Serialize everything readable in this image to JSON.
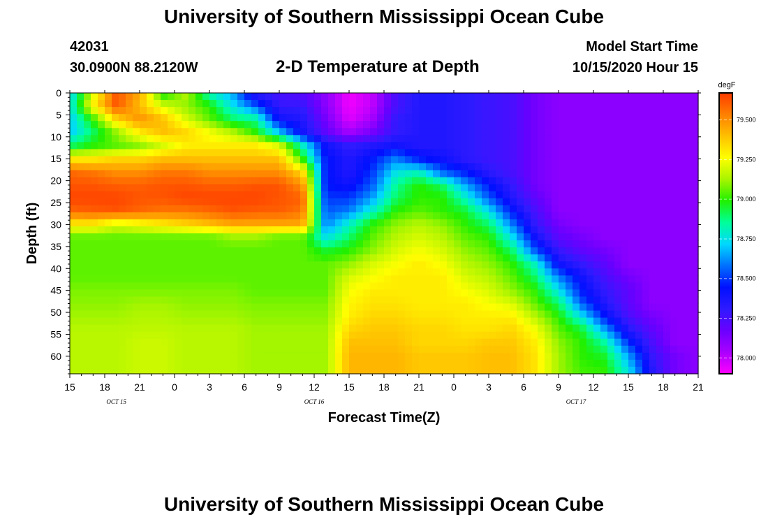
{
  "header": {
    "title": "University of Southern Mississippi Ocean Cube",
    "station_id": "42031",
    "station_coords": "30.0900N 88.2120W",
    "chart_title": "2-D Temperature at Depth",
    "model_start_label": "Model Start Time",
    "model_start_value": "10/15/2020 Hour 15"
  },
  "footer": {
    "title": "University of Southern Mississippi Ocean Cube"
  },
  "chart_data": {
    "type": "heatmap",
    "title": "2-D Temperature at Depth",
    "xlabel": "Forecast Time(Z)",
    "ylabel": "Depth (ft)",
    "x_hours": [
      0,
      3,
      6,
      9,
      12,
      15,
      18,
      21,
      24,
      27,
      30,
      33,
      36,
      39,
      42,
      45,
      48,
      51,
      54
    ],
    "x_tick_labels": [
      "15",
      "18",
      "21",
      "0",
      "3",
      "6",
      "9",
      "12",
      "15",
      "18",
      "21",
      "0",
      "3",
      "6",
      "9",
      "12",
      "15",
      "18",
      "21"
    ],
    "date_labels": [
      {
        "hour": 4,
        "label": "OCT 15"
      },
      {
        "hour": 21,
        "label": "OCT 16"
      },
      {
        "hour": 43.5,
        "label": "OCT 17"
      }
    ],
    "depth_ticks": [
      0,
      5,
      10,
      15,
      20,
      25,
      30,
      35,
      40,
      45,
      50,
      55,
      60
    ],
    "xlim": [
      0,
      54
    ],
    "ylim": [
      0,
      64
    ],
    "colorbar": {
      "unit": "degF",
      "min": 77.9,
      "max": 79.67,
      "ticks": [
        "78.000",
        "78.250",
        "78.500",
        "78.750",
        "79.000",
        "79.250",
        "79.500"
      ],
      "colors": [
        "#ff00ff",
        "#aa00ff",
        "#6a00ff",
        "#2f1aff",
        "#0010ff",
        "#0070ff",
        "#00d8ff",
        "#00ff9a",
        "#20f000",
        "#a8f500",
        "#ffff00",
        "#ffc000",
        "#ff8000",
        "#ff3a00"
      ]
    },
    "x_hours_sampled": [
      0,
      2,
      4,
      6,
      8,
      10,
      12,
      14,
      16,
      18,
      20,
      22,
      24,
      26,
      28,
      30,
      32,
      34,
      36,
      38,
      40,
      42,
      44,
      46,
      48,
      50,
      52,
      54
    ],
    "depths_sampled": [
      0,
      3,
      6,
      9,
      12,
      15,
      18,
      21,
      24,
      27,
      30,
      33,
      36,
      39,
      42,
      45,
      48,
      51,
      54,
      57,
      60,
      63
    ],
    "values": [
      [
        78.7,
        79.2,
        79.62,
        79.45,
        78.95,
        79.15,
        78.8,
        78.65,
        78.3,
        78.25,
        78.2,
        78.1,
        77.92,
        78.0,
        78.25,
        78.35,
        78.35,
        78.32,
        78.28,
        78.25,
        78.15,
        78.1,
        78.1,
        78.1,
        78.1,
        78.1,
        78.1,
        78.1
      ],
      [
        78.75,
        79.3,
        79.62,
        79.4,
        79.2,
        79.1,
        79.0,
        78.75,
        78.55,
        78.3,
        78.3,
        78.1,
        77.92,
        78.0,
        78.25,
        78.35,
        78.35,
        78.32,
        78.28,
        78.25,
        78.15,
        78.1,
        78.1,
        78.1,
        78.1,
        78.1,
        78.1,
        78.1
      ],
      [
        78.7,
        79.0,
        79.35,
        79.5,
        79.4,
        79.2,
        79.05,
        78.9,
        78.85,
        78.4,
        78.35,
        78.15,
        77.95,
        78.05,
        78.3,
        78.35,
        78.35,
        78.32,
        78.28,
        78.25,
        78.15,
        78.1,
        78.1,
        78.1,
        78.1,
        78.1,
        78.1,
        78.1
      ],
      [
        78.7,
        78.9,
        79.1,
        79.3,
        79.4,
        79.35,
        79.25,
        79.15,
        79.0,
        78.7,
        78.4,
        78.2,
        78.05,
        78.15,
        78.3,
        78.35,
        78.35,
        78.32,
        78.28,
        78.25,
        78.15,
        78.1,
        78.1,
        78.1,
        78.1,
        78.1,
        78.1,
        78.1
      ],
      [
        78.9,
        79.0,
        79.05,
        79.1,
        79.2,
        79.3,
        79.3,
        79.3,
        79.3,
        79.2,
        78.8,
        78.4,
        78.3,
        78.35,
        78.4,
        78.35,
        78.35,
        78.32,
        78.28,
        78.25,
        78.15,
        78.1,
        78.1,
        78.1,
        78.1,
        78.1,
        78.1,
        78.1
      ],
      [
        79.3,
        79.3,
        79.35,
        79.35,
        79.4,
        79.4,
        79.4,
        79.4,
        79.4,
        79.4,
        79.0,
        78.45,
        78.35,
        78.45,
        78.6,
        78.45,
        78.4,
        78.32,
        78.28,
        78.25,
        78.15,
        78.1,
        78.1,
        78.1,
        78.1,
        78.1,
        78.1,
        78.1
      ],
      [
        79.58,
        79.55,
        79.5,
        79.5,
        79.55,
        79.55,
        79.5,
        79.5,
        79.5,
        79.5,
        79.35,
        78.45,
        78.35,
        78.5,
        78.75,
        78.8,
        78.55,
        78.45,
        78.32,
        78.25,
        78.15,
        78.1,
        78.1,
        78.1,
        78.1,
        78.1,
        78.1,
        78.1
      ],
      [
        79.62,
        79.62,
        79.6,
        79.6,
        79.62,
        79.62,
        79.6,
        79.6,
        79.62,
        79.62,
        79.5,
        78.45,
        78.4,
        78.55,
        78.85,
        79.0,
        78.9,
        78.65,
        78.45,
        78.3,
        78.15,
        78.1,
        78.1,
        78.1,
        78.1,
        78.1,
        78.1,
        78.1
      ],
      [
        79.65,
        79.65,
        79.65,
        79.62,
        79.62,
        79.65,
        79.65,
        79.65,
        79.65,
        79.62,
        79.6,
        78.5,
        78.5,
        78.65,
        78.9,
        79.0,
        79.0,
        78.8,
        78.55,
        78.35,
        78.2,
        78.1,
        78.1,
        78.1,
        78.1,
        78.1,
        78.1,
        78.1
      ],
      [
        79.58,
        79.6,
        79.62,
        79.58,
        79.55,
        79.55,
        79.58,
        79.62,
        79.6,
        79.6,
        79.55,
        78.55,
        78.6,
        78.8,
        79.0,
        79.05,
        79.0,
        78.95,
        78.75,
        78.45,
        78.25,
        78.1,
        78.1,
        78.1,
        78.1,
        78.1,
        78.1,
        78.1
      ],
      [
        79.3,
        79.3,
        79.2,
        79.25,
        79.3,
        79.35,
        79.4,
        79.45,
        79.45,
        79.45,
        79.45,
        78.6,
        78.8,
        79.0,
        79.1,
        79.15,
        79.1,
        79.0,
        78.9,
        78.6,
        78.3,
        78.15,
        78.1,
        78.1,
        78.1,
        78.1,
        78.1,
        78.1
      ],
      [
        79.05,
        79.05,
        79.05,
        79.05,
        79.05,
        79.05,
        79.05,
        79.1,
        79.1,
        79.05,
        79.05,
        78.75,
        78.9,
        79.05,
        79.15,
        79.2,
        79.15,
        79.05,
        79.0,
        78.75,
        78.4,
        78.2,
        78.15,
        78.1,
        78.1,
        78.1,
        78.1,
        78.1
      ],
      [
        79.05,
        79.05,
        79.05,
        79.05,
        79.05,
        79.05,
        79.05,
        79.05,
        79.05,
        79.05,
        79.05,
        78.95,
        79.0,
        79.1,
        79.2,
        79.25,
        79.2,
        79.1,
        79.05,
        78.9,
        78.55,
        78.3,
        78.2,
        78.15,
        78.1,
        78.1,
        78.1,
        78.1
      ],
      [
        79.05,
        79.05,
        79.05,
        79.05,
        79.05,
        79.05,
        79.05,
        79.05,
        79.05,
        79.05,
        79.05,
        79.05,
        79.1,
        79.2,
        79.25,
        79.3,
        79.25,
        79.15,
        79.1,
        79.0,
        78.8,
        78.4,
        78.3,
        78.2,
        78.1,
        78.1,
        78.1,
        78.1
      ],
      [
        79.05,
        79.05,
        79.05,
        79.05,
        79.05,
        79.05,
        79.05,
        79.05,
        79.05,
        79.05,
        79.05,
        79.05,
        79.2,
        79.25,
        79.3,
        79.3,
        79.3,
        79.2,
        79.15,
        79.05,
        78.9,
        78.6,
        78.4,
        78.25,
        78.15,
        78.1,
        78.1,
        78.1
      ],
      [
        79.08,
        79.08,
        79.08,
        79.08,
        79.08,
        79.08,
        79.08,
        79.08,
        79.05,
        79.05,
        79.05,
        79.05,
        79.25,
        79.3,
        79.3,
        79.3,
        79.3,
        79.25,
        79.2,
        79.1,
        79.0,
        78.75,
        78.45,
        78.3,
        78.2,
        78.1,
        78.1,
        78.1
      ],
      [
        79.1,
        79.1,
        79.1,
        79.12,
        79.12,
        79.1,
        79.1,
        79.1,
        79.08,
        79.08,
        79.08,
        79.08,
        79.28,
        79.32,
        79.32,
        79.3,
        79.3,
        79.3,
        79.25,
        79.2,
        79.05,
        78.9,
        78.55,
        78.35,
        78.2,
        78.1,
        78.1,
        78.1
      ],
      [
        79.12,
        79.12,
        79.12,
        79.14,
        79.14,
        79.12,
        79.12,
        79.12,
        79.1,
        79.1,
        79.1,
        79.1,
        79.3,
        79.35,
        79.35,
        79.32,
        79.32,
        79.3,
        79.3,
        79.3,
        79.15,
        79.0,
        78.75,
        78.45,
        78.25,
        78.15,
        78.1,
        78.1
      ],
      [
        79.15,
        79.15,
        79.15,
        79.16,
        79.16,
        79.15,
        79.15,
        79.15,
        79.12,
        79.12,
        79.12,
        79.12,
        79.35,
        79.38,
        79.38,
        79.35,
        79.35,
        79.32,
        79.32,
        79.35,
        79.25,
        79.05,
        78.95,
        78.65,
        78.35,
        78.2,
        78.1,
        78.1
      ],
      [
        79.15,
        79.15,
        79.15,
        79.18,
        79.18,
        79.15,
        79.15,
        79.15,
        79.12,
        79.12,
        79.12,
        79.12,
        79.4,
        79.4,
        79.4,
        79.35,
        79.35,
        79.35,
        79.38,
        79.38,
        79.3,
        79.1,
        79.0,
        78.85,
        78.5,
        78.25,
        78.1,
        78.1
      ],
      [
        79.15,
        79.15,
        79.15,
        79.18,
        79.18,
        79.15,
        79.15,
        79.15,
        79.12,
        79.12,
        79.12,
        79.12,
        79.42,
        79.42,
        79.42,
        79.38,
        79.38,
        79.38,
        79.4,
        79.4,
        79.32,
        79.12,
        79.0,
        78.95,
        78.65,
        78.3,
        78.15,
        78.1
      ],
      [
        79.15,
        79.15,
        79.15,
        79.18,
        79.18,
        79.15,
        79.15,
        79.15,
        79.12,
        79.12,
        79.12,
        79.12,
        79.42,
        79.42,
        79.42,
        79.38,
        79.38,
        79.38,
        79.4,
        79.4,
        79.32,
        79.12,
        79.02,
        79.0,
        78.75,
        78.35,
        78.15,
        78.1
      ]
    ]
  }
}
